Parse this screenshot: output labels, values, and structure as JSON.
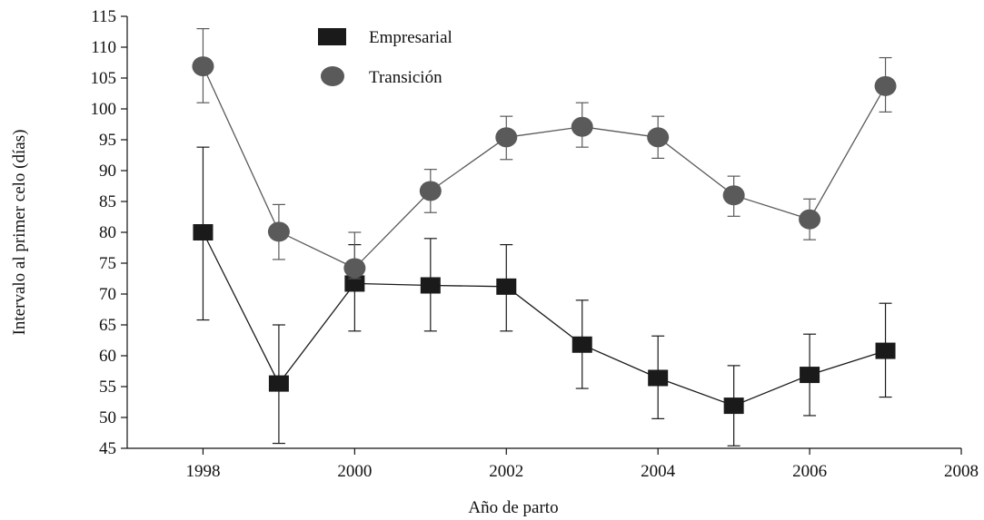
{
  "chart_data": {
    "type": "line",
    "title": "",
    "xlabel": "Año de parto",
    "ylabel": "Intervalo al primer celo (días)",
    "xlim": [
      1997,
      2008
    ],
    "ylim": [
      45,
      115
    ],
    "x_ticks": [
      "1998",
      "2000",
      "2002",
      "2004",
      "2006",
      "2008"
    ],
    "y_ticks": [
      "45",
      "50",
      "55",
      "60",
      "65",
      "70",
      "75",
      "80",
      "85",
      "90",
      "95",
      "100",
      "105",
      "110",
      "115"
    ],
    "x": [
      1998,
      1999,
      2000,
      2001,
      2002,
      2003,
      2004,
      2005,
      2006,
      2007
    ],
    "grid": false,
    "legend_position": "top-center",
    "series": [
      {
        "name": "Empresarial",
        "marker": "square",
        "color": "#1a1a1a",
        "values": [
          80,
          55.5,
          71.7,
          71.4,
          71.2,
          61.8,
          56.4,
          51.9,
          56.9,
          60.8
        ],
        "err_low": [
          65.8,
          45.8,
          64,
          64,
          64,
          54.7,
          49.8,
          45.4,
          50.3,
          53.3
        ],
        "err_high": [
          93.8,
          65,
          78,
          79,
          78,
          69,
          63.2,
          58.4,
          63.5,
          68.5
        ]
      },
      {
        "name": "Transición",
        "marker": "circle",
        "color": "#5a5a5a",
        "values": [
          106.9,
          80.1,
          74.2,
          86.7,
          95.4,
          97.1,
          95.4,
          86,
          82.1,
          103.7
        ],
        "err_low": [
          101,
          75.6,
          72.5,
          83.2,
          91.8,
          93.8,
          92,
          82.6,
          78.8,
          99.5
        ],
        "err_high": [
          113,
          84.5,
          80,
          90.2,
          98.8,
          101,
          98.8,
          89.1,
          85.4,
          108.3
        ]
      }
    ]
  }
}
